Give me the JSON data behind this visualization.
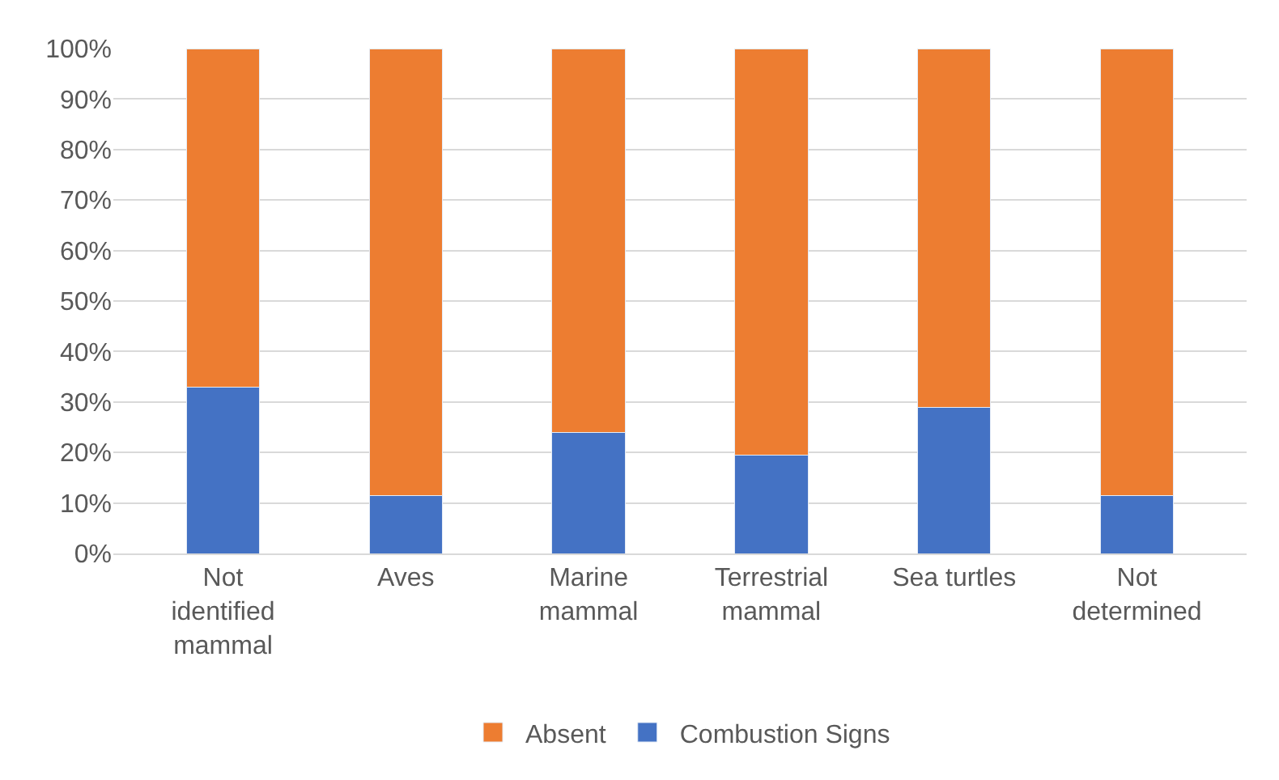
{
  "chart_data": {
    "type": "bar",
    "stacked": true,
    "categories": [
      "Not identified mammal",
      "Aves",
      "Marine mammal",
      "Terrestrial mammal",
      "Sea turtles",
      "Not determined"
    ],
    "series": [
      {
        "name": "Combustion Signs",
        "color": "#4472c4",
        "values": [
          33,
          11.5,
          24,
          19.5,
          29,
          11.5
        ]
      },
      {
        "name": "Absent",
        "color": "#ed7d31",
        "values": [
          67,
          88.5,
          76,
          80.5,
          71,
          88.5
        ]
      }
    ],
    "ylim": [
      0,
      100
    ],
    "yticks": [
      {
        "value": 0,
        "label": "0%"
      },
      {
        "value": 10,
        "label": "10%"
      },
      {
        "value": 20,
        "label": "20%"
      },
      {
        "value": 30,
        "label": "30%"
      },
      {
        "value": 40,
        "label": "40%"
      },
      {
        "value": 50,
        "label": "50%"
      },
      {
        "value": 60,
        "label": "60%"
      },
      {
        "value": 70,
        "label": "70%"
      },
      {
        "value": 80,
        "label": "80%"
      },
      {
        "value": 90,
        "label": "90%"
      },
      {
        "value": 100,
        "label": "100%"
      }
    ],
    "grid": "y",
    "legend": "bottom"
  }
}
